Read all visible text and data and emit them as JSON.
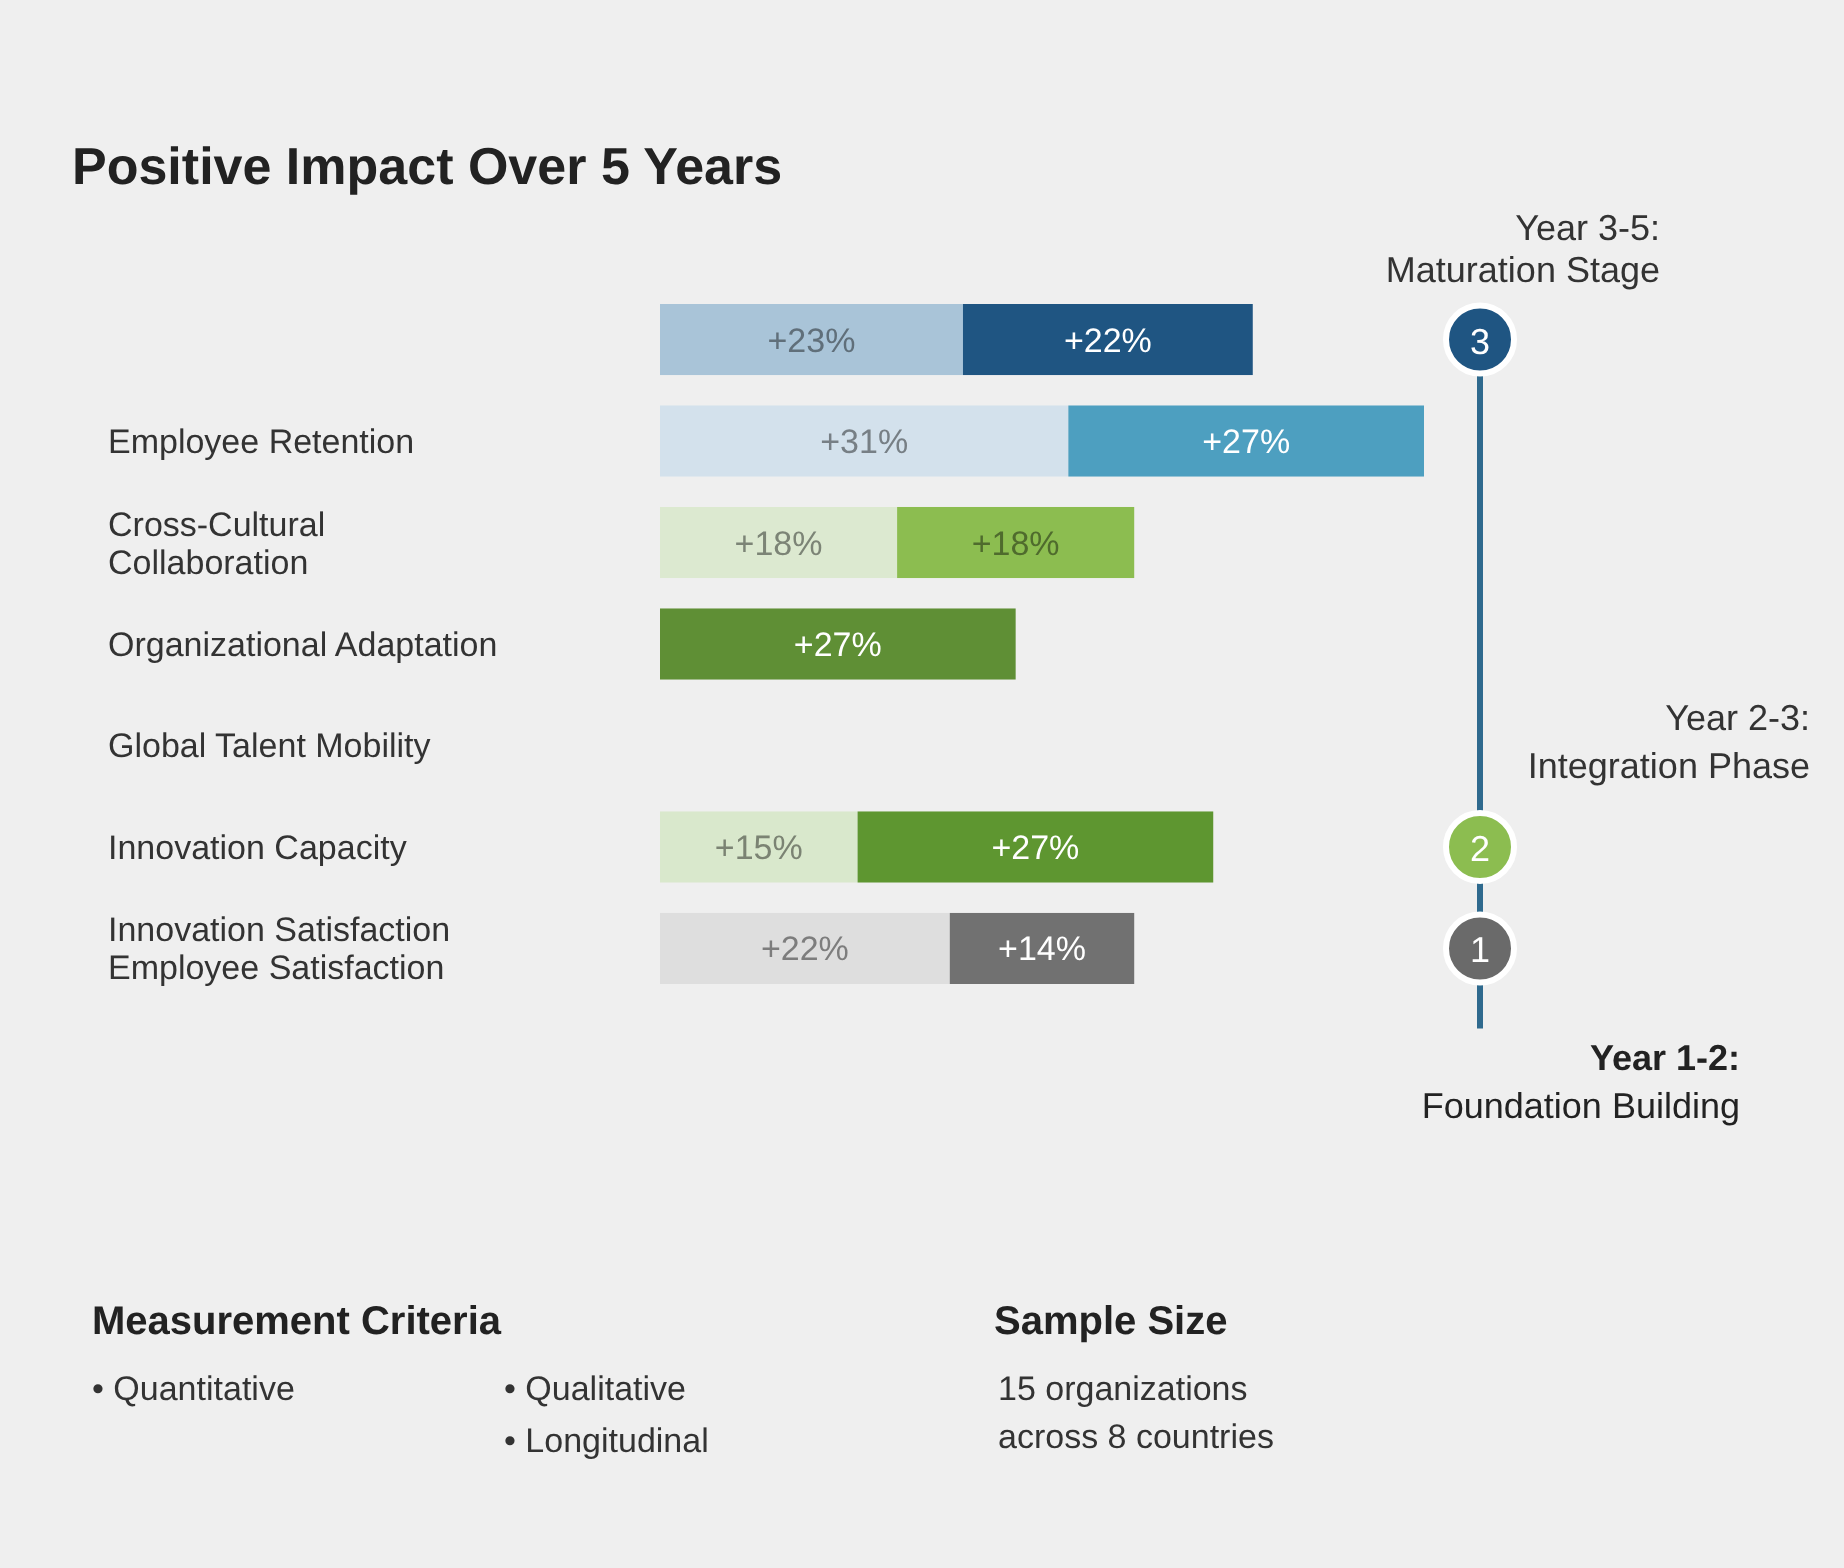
{
  "chart_data": {
    "type": "bar",
    "orientation": "horizontal",
    "stacked": true,
    "title": "Positive Impact Over 5 Years",
    "categories": [
      null,
      "Employee Retention",
      "Cross-Cultural\nCollaboration",
      "Organizational Adaptation",
      "Global Talent Mobility",
      "Innovation Capacity",
      "Innovation Satisfaction\nEmployee Satisfaction"
    ],
    "series": [
      {
        "colors": [
          "#a9c4d8",
          "#d3e1ec",
          "#dce9d0",
          null,
          null,
          "#d9e8cc",
          "#dedede"
        ],
        "values": [
          23,
          31,
          18,
          null,
          null,
          15,
          22
        ],
        "value_labels": [
          "+23%",
          "+31%",
          "+18%",
          null,
          null,
          "+15%",
          "+22%"
        ]
      },
      {
        "colors": [
          "#1f5582",
          "#4d9fc0",
          "#8cbd50",
          "#5f8f35",
          null,
          "#5e9630",
          "#717171"
        ],
        "values": [
          22,
          27,
          18,
          27,
          null,
          27,
          14
        ],
        "value_labels": [
          "+22%",
          "+27%",
          "+18%",
          "+27%",
          null,
          "+27%",
          "+14%"
        ]
      }
    ],
    "annotations": [
      "3",
      "2",
      "1",
      "Year 3-5:\nMaturation Stage",
      "Year 2-3:\nIntegration Phase",
      "Year 1-2:\nFoundation Building",
      "Measurement Criteria",
      "• Quantitative",
      "• Qualitative",
      "• Longitudinal",
      "Sample Size",
      "15 organizations\nacross 8 countries"
    ]
  }
}
